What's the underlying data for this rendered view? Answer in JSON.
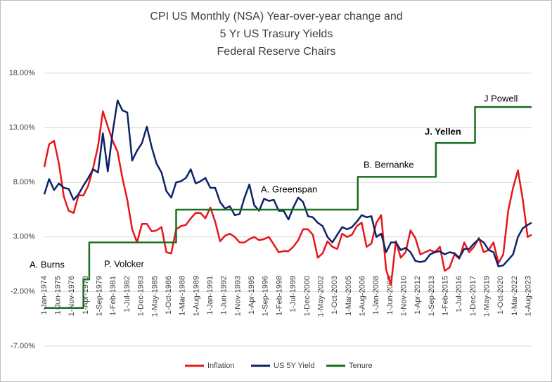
{
  "chart_data": {
    "type": "line",
    "title": [
      "CPI US Monthly (NSA) Year-over-year change and",
      "5 Yr US Trasury Yields",
      "Federal Reserve Chairs"
    ],
    "x": [
      1974,
      1974.5,
      1975,
      1975.5,
      1976,
      1976.5,
      1977,
      1977.5,
      1978,
      1978.5,
      1979,
      1979.5,
      1980,
      1980.5,
      1981,
      1981.5,
      1982,
      1982.5,
      1983,
      1983.5,
      1984,
      1984.5,
      1985,
      1985.5,
      1986,
      1986.5,
      1987,
      1987.5,
      1988,
      1988.5,
      1989,
      1989.5,
      1990,
      1990.5,
      1991,
      1991.5,
      1992,
      1992.5,
      1993,
      1993.5,
      1994,
      1994.5,
      1995,
      1995.5,
      1996,
      1996.5,
      1997,
      1997.5,
      1998,
      1998.5,
      1999,
      1999.5,
      2000,
      2000.5,
      2001,
      2001.5,
      2002,
      2002.5,
      2003,
      2003.5,
      2004,
      2004.5,
      2005,
      2005.5,
      2006,
      2006.5,
      2007,
      2007.5,
      2008,
      2008.5,
      2009,
      2009.5,
      2010,
      2010.5,
      2011,
      2011.5,
      2012,
      2012.5,
      2013,
      2013.5,
      2014,
      2014.5,
      2015,
      2015.5,
      2016,
      2016.5,
      2017,
      2017.5,
      2018,
      2018.5,
      2019,
      2019.5,
      2020,
      2020.5,
      2021,
      2021.5,
      2022,
      2022.5,
      2023,
      2023.5,
      2023.9
    ],
    "series": [
      {
        "name": "Inflation",
        "color": "#e8161b",
        "values": [
          9.4,
          11.5,
          11.8,
          9.7,
          6.7,
          5.4,
          5.2,
          6.8,
          6.8,
          7.7,
          9.3,
          11.3,
          14.5,
          13.1,
          11.8,
          10.8,
          8.4,
          6.4,
          3.7,
          2.5,
          4.2,
          4.2,
          3.5,
          3.6,
          3.9,
          1.6,
          1.5,
          3.7,
          4.0,
          4.1,
          4.7,
          5.2,
          5.2,
          4.7,
          5.7,
          4.4,
          2.6,
          3.1,
          3.3,
          3.0,
          2.5,
          2.5,
          2.8,
          3.0,
          2.7,
          2.8,
          3.0,
          2.3,
          1.6,
          1.7,
          1.7,
          2.1,
          2.7,
          3.7,
          3.7,
          3.2,
          1.1,
          1.5,
          2.6,
          2.1,
          1.9,
          3.3,
          3.0,
          3.2,
          4.0,
          4.3,
          2.1,
          2.4,
          4.3,
          5.0,
          0.0,
          -1.4,
          2.6,
          1.1,
          1.6,
          3.6,
          2.9,
          1.4,
          1.6,
          1.8,
          1.6,
          2.1,
          -0.1,
          0.2,
          1.4,
          1.0,
          2.5,
          1.6,
          2.1,
          2.9,
          1.6,
          1.8,
          2.5,
          0.6,
          1.4,
          5.4,
          7.5,
          9.1,
          6.4,
          3.0,
          3.2
        ]
      },
      {
        "name": "US 5Y Yield",
        "color": "#0d2369",
        "values": [
          6.9,
          8.3,
          7.3,
          7.9,
          7.5,
          7.4,
          6.4,
          6.9,
          7.7,
          8.4,
          9.2,
          8.9,
          12.5,
          9.0,
          12.6,
          15.5,
          14.6,
          14.4,
          10.0,
          10.9,
          11.6,
          13.1,
          11.2,
          9.7,
          8.9,
          7.2,
          6.6,
          8.0,
          8.1,
          8.4,
          9.2,
          7.9,
          8.1,
          8.4,
          7.5,
          7.5,
          6.2,
          5.6,
          5.8,
          5.0,
          5.1,
          6.6,
          7.8,
          5.9,
          5.4,
          6.5,
          6.3,
          6.4,
          5.4,
          5.4,
          4.6,
          5.7,
          6.6,
          6.2,
          4.9,
          4.8,
          4.3,
          4.0,
          3.0,
          2.5,
          3.2,
          3.9,
          3.7,
          3.9,
          4.4,
          5.0,
          4.8,
          4.9,
          3.0,
          3.3,
          1.6,
          2.5,
          2.5,
          1.8,
          2.0,
          1.6,
          0.8,
          0.7,
          0.8,
          1.4,
          1.6,
          1.7,
          1.4,
          1.6,
          1.5,
          1.1,
          1.9,
          1.9,
          2.4,
          2.8,
          2.5,
          1.8,
          1.6,
          0.3,
          0.4,
          0.9,
          1.4,
          3.0,
          3.8,
          4.1,
          4.3
        ]
      },
      {
        "name": "Tenure",
        "color": "#1a6e1f",
        "x": [
          1974,
          1978.0,
          1978.0,
          1978.6,
          1978.6,
          1987.5,
          1987.5,
          2006.1,
          2006.1,
          2014.1,
          2014.1,
          2018.1,
          2018.1,
          2023.9
        ],
        "values": [
          -3.5,
          -3.5,
          -0.9,
          -0.9,
          2.5,
          2.5,
          5.5,
          5.5,
          8.5,
          8.5,
          11.6,
          11.6,
          14.9,
          14.9
        ]
      }
    ],
    "xlim": [
      1974,
      2023.9
    ],
    "xticks": [
      {
        "value": 1974.0,
        "label": "1-Jan-1974"
      },
      {
        "value": 1975.42,
        "label": "1-Jun-1975"
      },
      {
        "value": 1976.83,
        "label": "1-Nov-1976"
      },
      {
        "value": 1978.25,
        "label": "1-Apr-1978"
      },
      {
        "value": 1979.67,
        "label": "1-Sep-1979"
      },
      {
        "value": 1981.08,
        "label": "1-Feb-1981"
      },
      {
        "value": 1982.5,
        "label": "1-Jul-1982"
      },
      {
        "value": 1983.92,
        "label": "1-Dec-1983"
      },
      {
        "value": 1985.33,
        "label": "1-May-1985"
      },
      {
        "value": 1986.75,
        "label": "1-Oct-1986"
      },
      {
        "value": 1988.17,
        "label": "1-Mar-1988"
      },
      {
        "value": 1989.58,
        "label": "1-Aug-1989"
      },
      {
        "value": 1991.0,
        "label": "1-Jan-1991"
      },
      {
        "value": 1992.42,
        "label": "1-Jun-1992"
      },
      {
        "value": 1993.83,
        "label": "1-Nov-1993"
      },
      {
        "value": 1995.25,
        "label": "1-Apr-1995"
      },
      {
        "value": 1996.67,
        "label": "1-Sep-1996"
      },
      {
        "value": 1998.08,
        "label": "1-Feb-1998"
      },
      {
        "value": 1999.5,
        "label": "1-Jul-1999"
      },
      {
        "value": 2000.92,
        "label": "1-Dec-2000"
      },
      {
        "value": 2002.33,
        "label": "1-May-2002"
      },
      {
        "value": 2003.75,
        "label": "1-Oct-2003"
      },
      {
        "value": 2005.17,
        "label": "1-Mar-2005"
      },
      {
        "value": 2006.58,
        "label": "1-Aug-2006"
      },
      {
        "value": 2008.0,
        "label": "1-Jan-2008"
      },
      {
        "value": 2009.42,
        "label": "1-Jun-2009"
      },
      {
        "value": 2010.83,
        "label": "1-Nov-2010"
      },
      {
        "value": 2012.25,
        "label": "1-Apr-2012"
      },
      {
        "value": 2013.67,
        "label": "1-Sep-2013"
      },
      {
        "value": 2015.08,
        "label": "1-Feb-2015"
      },
      {
        "value": 2016.5,
        "label": "1-Jul-2016"
      },
      {
        "value": 2017.92,
        "label": "1-Dec-2017"
      },
      {
        "value": 2019.33,
        "label": "1-May-2019"
      },
      {
        "value": 2020.75,
        "label": "1-Oct-2020"
      },
      {
        "value": 2022.17,
        "label": "1-Mar-2022"
      },
      {
        "value": 2023.58,
        "label": "1-Aug-2023"
      }
    ],
    "ylim": [
      -7,
      18
    ],
    "yticks": [
      {
        "value": -7,
        "label": "-7.00%"
      },
      {
        "value": -2,
        "label": "-2.00%"
      },
      {
        "value": 3,
        "label": "3.00%"
      },
      {
        "value": 8,
        "label": "8.00%"
      },
      {
        "value": 13,
        "label": "13.00%"
      },
      {
        "value": 18,
        "label": "18.00%"
      }
    ],
    "grid": true,
    "legend": "bottom",
    "annotations": [
      "A. Burns",
      "P. Volcker",
      "A. Greenspan",
      "B. Bernanke",
      "J. Yellen",
      "J Powell"
    ]
  }
}
